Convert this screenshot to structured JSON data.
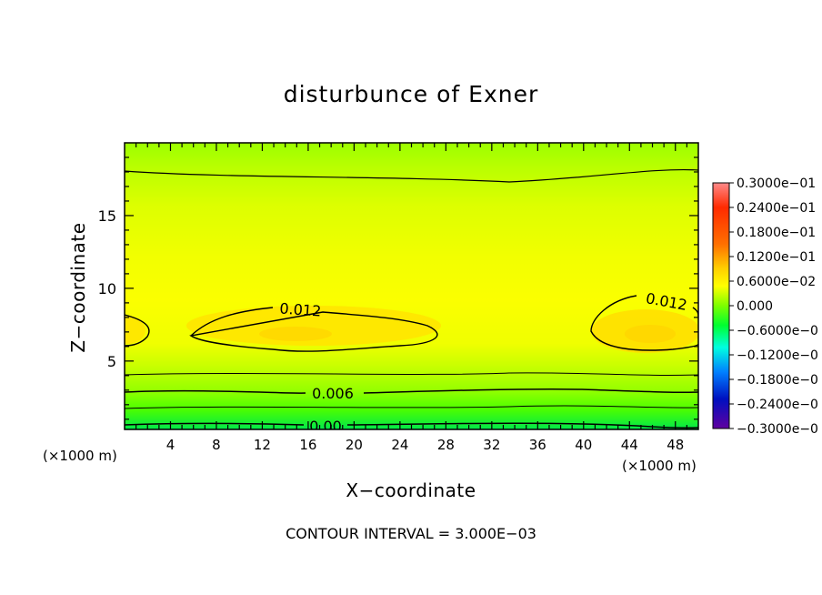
{
  "chart_data": {
    "type": "heatmap",
    "title": "disturbunce of Exner",
    "xlabel": "X−coordinate",
    "ylabel": "Z−coordinate",
    "x_unit_left": "(×1000 m)",
    "x_unit_right": "(×1000 m)",
    "xlim": [
      0,
      50
    ],
    "ylim": [
      0.3,
      20
    ],
    "x_ticks": [
      "4",
      "8",
      "12",
      "16",
      "20",
      "24",
      "28",
      "32",
      "36",
      "40",
      "44",
      "48"
    ],
    "y_ticks": [
      "5",
      "10",
      "15"
    ],
    "colorbar_labels": [
      "0.3000e−01",
      "0.2400e−01",
      "0.1800e−01",
      "0.1200e−01",
      "0.6000e−02",
      "0.000",
      "−0.6000e−0",
      "−0.1200e−0",
      "−0.1800e−0",
      "−0.2400e−0",
      "−0.3000e−0"
    ],
    "colorbar_range": [
      -0.03,
      0.03
    ],
    "contour_labels": [
      {
        "text": "0.012",
        "x": 16.5,
        "z": 8.3
      },
      {
        "text": "0.012",
        "x": 47.0,
        "z": 8.8
      },
      {
        "text": "0.006",
        "x": 18.5,
        "z": 2.5
      },
      {
        "text": "0.00",
        "x": 17.0,
        "z": 0.6
      }
    ],
    "contour_interval": "CONTOUR INTERVAL = 3.000E−03",
    "field_description_levels": [
      {
        "z": 0.3,
        "value": 0.0
      },
      {
        "z": 2.5,
        "value": 0.006
      },
      {
        "z": 4.5,
        "value": 0.01
      },
      {
        "z": 7.0,
        "value": 0.0125
      },
      {
        "z": 11.0,
        "value": 0.01
      },
      {
        "z": 18.0,
        "value": 0.006
      },
      {
        "z": 20.0,
        "value": 0.005
      }
    ]
  },
  "colors": {
    "frame": "#000000",
    "colorbar": [
      "#ff8a8a",
      "#ff2a00",
      "#ff7000",
      "#ffd000",
      "#ffff00",
      "#7dff00",
      "#00ff30",
      "#00ffe0",
      "#0080ff",
      "#0010c0",
      "#6000a0"
    ]
  }
}
